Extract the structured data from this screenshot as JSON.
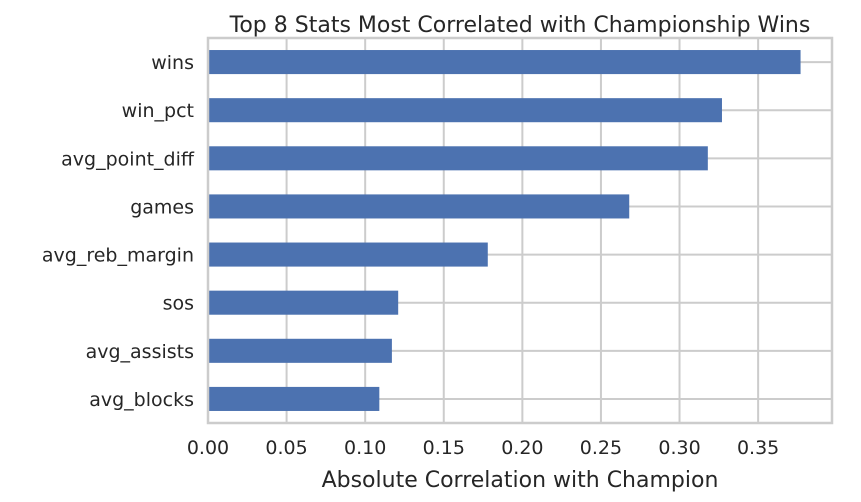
{
  "chart_data": {
    "type": "bar",
    "orientation": "horizontal",
    "title": "Top 8 Stats Most Correlated with Championship Wins",
    "xlabel": "Absolute Correlation with Champion",
    "ylabel": "",
    "categories": [
      "wins",
      "win_pct",
      "avg_point_diff",
      "games",
      "avg_reb_margin",
      "sos",
      "avg_assists",
      "avg_blocks"
    ],
    "values": [
      0.377,
      0.327,
      0.318,
      0.268,
      0.178,
      0.121,
      0.117,
      0.109
    ],
    "xlim": [
      0,
      0.397
    ],
    "xticks": [
      0.0,
      0.05,
      0.1,
      0.15,
      0.2,
      0.25,
      0.3,
      0.35
    ],
    "xtick_labels": [
      "0.00",
      "0.05",
      "0.10",
      "0.15",
      "0.20",
      "0.25",
      "0.30",
      "0.35"
    ],
    "grid": true,
    "bar_color": "#4c72b0",
    "grid_color": "#cccccc"
  }
}
